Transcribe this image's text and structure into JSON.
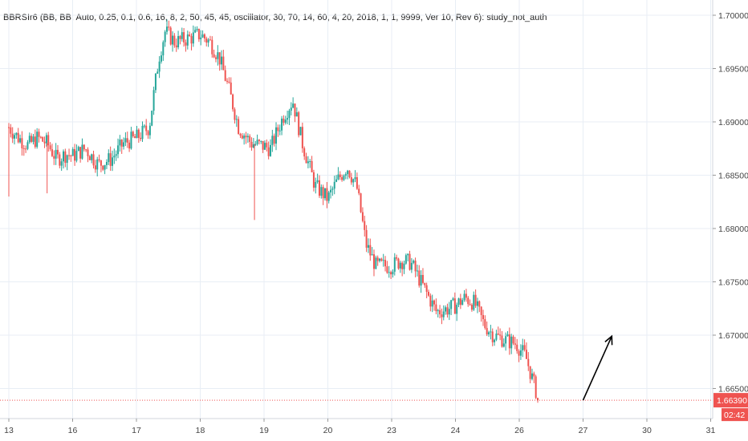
{
  "study_label": "BBRSIr6 (BB, BB, Auto, 0.25, 0.1, 0.6, 16, 8, 2, 50, 45, 45, oscillator, 30, 70, 14, 60, 4, 20, 2018, 1, 1, 9999, Ver 10, Rev 6): study_not_auth",
  "colors": {
    "up": "#26a69a",
    "down": "#ef5350",
    "price_line": "#ef5350",
    "grid": "#e8eef5",
    "arrow": "#000000",
    "background": "#ffffff"
  },
  "current_price_label": "1.66390",
  "countdown_label": "02:42",
  "chart_data": {
    "type": "candlestick",
    "title": "",
    "xlabel": "",
    "ylabel": "",
    "ylim": [
      1.6618,
      1.7012
    ],
    "y_ticks": [
      "1.70000",
      "1.69500",
      "1.69000",
      "1.68500",
      "1.68000",
      "1.67500",
      "1.67000",
      "1.66500"
    ],
    "x_range": [
      13,
      31.4
    ],
    "x_ticks": [
      {
        "x": 13,
        "label": "13"
      },
      {
        "x": 14,
        "label": "16"
      },
      {
        "x": 15,
        "label": "17"
      },
      {
        "x": 16,
        "label": "18"
      },
      {
        "x": 17,
        "label": "19"
      },
      {
        "x": 18,
        "label": "20"
      },
      {
        "x": 19,
        "label": "23"
      },
      {
        "x": 20,
        "label": "24"
      },
      {
        "x": 21,
        "label": "26"
      },
      {
        "x": 22,
        "label": "27"
      },
      {
        "x": 23,
        "label": "30"
      },
      {
        "x": 24,
        "label": "31"
      }
    ],
    "current_price": 1.6639,
    "grid": true,
    "anchors": [
      {
        "x": 13.0,
        "y": 1.6895
      },
      {
        "x": 13.15,
        "y": 1.6885
      },
      {
        "x": 13.3,
        "y": 1.6878
      },
      {
        "x": 13.45,
        "y": 1.6885
      },
      {
        "x": 13.6,
        "y": 1.688
      },
      {
        "x": 13.75,
        "y": 1.6865
      },
      {
        "x": 13.9,
        "y": 1.687
      },
      {
        "x": 14.0,
        "y": 1.6868
      },
      {
        "x": 14.2,
        "y": 1.6875
      },
      {
        "x": 14.4,
        "y": 1.686
      },
      {
        "x": 14.6,
        "y": 1.6865
      },
      {
        "x": 14.8,
        "y": 1.688
      },
      {
        "x": 15.0,
        "y": 1.6885
      },
      {
        "x": 15.2,
        "y": 1.6895
      },
      {
        "x": 15.35,
        "y": 1.696
      },
      {
        "x": 15.45,
        "y": 1.6985
      },
      {
        "x": 15.6,
        "y": 1.6975
      },
      {
        "x": 15.8,
        "y": 1.6978
      },
      {
        "x": 16.0,
        "y": 1.6982
      },
      {
        "x": 16.15,
        "y": 1.6975
      },
      {
        "x": 16.3,
        "y": 1.696
      },
      {
        "x": 16.45,
        "y": 1.693
      },
      {
        "x": 16.6,
        "y": 1.6895
      },
      {
        "x": 16.8,
        "y": 1.688
      },
      {
        "x": 16.95,
        "y": 1.6878
      },
      {
        "x": 17.1,
        "y": 1.6875
      },
      {
        "x": 17.3,
        "y": 1.6905
      },
      {
        "x": 17.45,
        "y": 1.692
      },
      {
        "x": 17.6,
        "y": 1.688
      },
      {
        "x": 17.8,
        "y": 1.684
      },
      {
        "x": 18.0,
        "y": 1.6828
      },
      {
        "x": 18.15,
        "y": 1.6845
      },
      {
        "x": 18.3,
        "y": 1.6858
      },
      {
        "x": 18.45,
        "y": 1.684
      },
      {
        "x": 18.6,
        "y": 1.6785
      },
      {
        "x": 18.75,
        "y": 1.6765
      },
      {
        "x": 19.0,
        "y": 1.6765
      },
      {
        "x": 19.15,
        "y": 1.677
      },
      {
        "x": 19.3,
        "y": 1.6768
      },
      {
        "x": 19.5,
        "y": 1.6745
      },
      {
        "x": 19.7,
        "y": 1.6722
      },
      {
        "x": 19.9,
        "y": 1.6725
      },
      {
        "x": 20.0,
        "y": 1.6728
      },
      {
        "x": 20.15,
        "y": 1.6735
      },
      {
        "x": 20.3,
        "y": 1.673
      },
      {
        "x": 20.45,
        "y": 1.671
      },
      {
        "x": 20.6,
        "y": 1.67
      },
      {
        "x": 20.8,
        "y": 1.6695
      },
      {
        "x": 20.95,
        "y": 1.6692
      },
      {
        "x": 21.1,
        "y": 1.668
      },
      {
        "x": 21.2,
        "y": 1.666
      },
      {
        "x": 21.3,
        "y": 1.664
      }
    ],
    "outlier_wicks": [
      {
        "x": 13.0,
        "low": 1.683
      },
      {
        "x": 13.6,
        "low": 1.6833
      },
      {
        "x": 16.85,
        "low": 1.6808
      }
    ]
  },
  "annotation": {
    "type": "arrow",
    "from": {
      "x": 22.0,
      "y": 1.6639
    },
    "to": {
      "x": 22.45,
      "y": 1.6699
    }
  }
}
